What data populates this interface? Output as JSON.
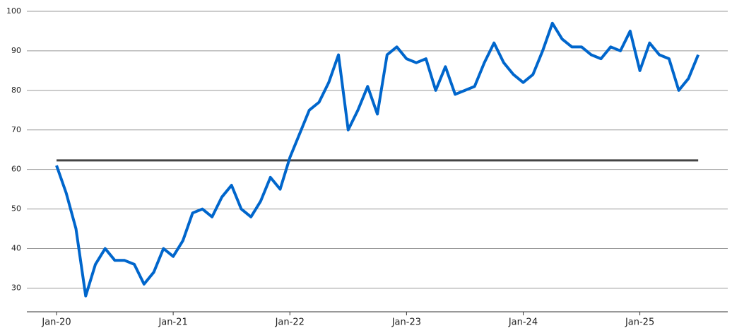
{
  "chart_data": {
    "type": "line",
    "categories": [
      "Jan-20",
      null,
      null,
      null,
      null,
      null,
      null,
      null,
      null,
      null,
      null,
      null,
      "Jan-21",
      null,
      null,
      null,
      null,
      null,
      null,
      null,
      null,
      null,
      null,
      null,
      "Jan-22",
      null,
      null,
      null,
      null,
      null,
      null,
      null,
      null,
      null,
      null,
      null,
      "Jan-23",
      null,
      null,
      null,
      null,
      null,
      null,
      null,
      null,
      null,
      null,
      null,
      "Jan-24",
      null,
      null,
      null,
      null,
      null,
      null,
      null,
      null,
      null,
      null,
      null,
      "Jan-25",
      null,
      null,
      null,
      null,
      null,
      null
    ],
    "series": [
      {
        "color": "#0066cc",
        "values": [
          61,
          54,
          45,
          28,
          36,
          40,
          37,
          37,
          36,
          31,
          34,
          40,
          38,
          42,
          49,
          50,
          48,
          53,
          56,
          50,
          48,
          52,
          58,
          55,
          63,
          69,
          75,
          77,
          82,
          89,
          70,
          75,
          81,
          74,
          89,
          91,
          88,
          87,
          88,
          80,
          86,
          79,
          80,
          81,
          87,
          92,
          87,
          84,
          82,
          84,
          90,
          97,
          93,
          91,
          91,
          89,
          88,
          91,
          90,
          95,
          85,
          92,
          89,
          88,
          80,
          83,
          89
        ]
      }
    ],
    "reference_line": {
      "value": 62.3,
      "color": "#444444"
    },
    "ylim": [
      24,
      100
    ],
    "yticks": [
      30,
      40,
      50,
      60,
      70,
      80,
      90,
      100
    ],
    "grid": true
  }
}
